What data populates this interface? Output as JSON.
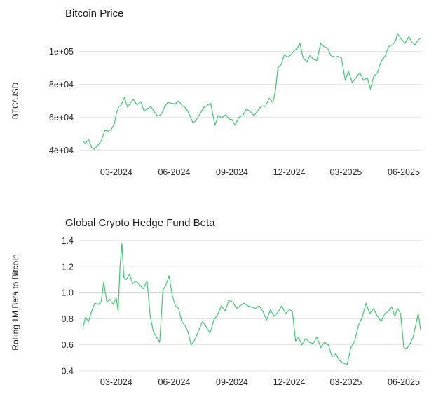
{
  "chart_data": [
    {
      "type": "line",
      "title": "Bitcoin Price",
      "xlabel": "",
      "ylabel": "BTC/USD",
      "ylim": [
        35000,
        116000
      ],
      "xlim": [
        "2024-01-01",
        "2025-06-30"
      ],
      "yticks": [
        40000,
        60000,
        80000,
        100000
      ],
      "ytick_labels": [
        "4e+04",
        "6e+04",
        "8e+04",
        "1e+05"
      ],
      "xticks": [
        "2024-03-01",
        "2024-06-01",
        "2024-09-01",
        "2024-12-01",
        "2025-03-01",
        "2025-06-01"
      ],
      "xtick_labels": [
        "03-2024",
        "06-2024",
        "09-2024",
        "12-2024",
        "03-2025",
        "06-2025"
      ],
      "grid": true,
      "color": "#3ec96f",
      "series": [
        {
          "x": [
            "2024-01-08",
            "2024-01-12",
            "2024-01-17",
            "2024-01-22",
            "2024-01-26",
            "2024-02-01",
            "2024-02-06",
            "2024-02-12",
            "2024-02-17",
            "2024-02-22",
            "2024-02-27",
            "2024-03-01",
            "2024-03-05",
            "2024-03-09",
            "2024-03-14",
            "2024-03-19",
            "2024-03-24",
            "2024-03-28",
            "2024-04-03",
            "2024-04-09",
            "2024-04-14",
            "2024-04-19",
            "2024-04-25",
            "2024-05-01",
            "2024-05-06",
            "2024-05-12",
            "2024-05-17",
            "2024-05-22",
            "2024-05-28",
            "2024-06-03",
            "2024-06-08",
            "2024-06-14",
            "2024-06-20",
            "2024-06-26",
            "2024-07-01",
            "2024-07-06",
            "2024-07-12",
            "2024-07-18",
            "2024-07-23",
            "2024-07-29",
            "2024-08-05",
            "2024-08-10",
            "2024-08-16",
            "2024-08-22",
            "2024-08-27",
            "2024-09-01",
            "2024-09-06",
            "2024-09-12",
            "2024-09-18",
            "2024-09-24",
            "2024-09-30",
            "2024-10-06",
            "2024-10-12",
            "2024-10-18",
            "2024-10-24",
            "2024-10-30",
            "2024-11-05",
            "2024-11-09",
            "2024-11-13",
            "2024-11-18",
            "2024-11-23",
            "2024-11-28",
            "2024-12-04",
            "2024-12-09",
            "2024-12-14",
            "2024-12-18",
            "2024-12-23",
            "2024-12-29",
            "2025-01-03",
            "2025-01-09",
            "2025-01-14",
            "2025-01-20",
            "2025-01-25",
            "2025-01-31",
            "2025-02-05",
            "2025-02-11",
            "2025-02-17",
            "2025-02-22",
            "2025-02-28",
            "2025-03-05",
            "2025-03-11",
            "2025-03-17",
            "2025-03-23",
            "2025-03-29",
            "2025-04-04",
            "2025-04-09",
            "2025-04-14",
            "2025-04-20",
            "2025-04-26",
            "2025-05-02",
            "2025-05-08",
            "2025-05-14",
            "2025-05-19",
            "2025-05-22",
            "2025-05-28",
            "2025-06-03",
            "2025-06-09",
            "2025-06-14",
            "2025-06-19",
            "2025-06-24",
            "2025-06-28"
          ],
          "values": [
            45500,
            44000,
            46500,
            41500,
            40500,
            43000,
            45500,
            52000,
            51500,
            52500,
            56000,
            62000,
            66500,
            67500,
            72000,
            66000,
            69000,
            71000,
            67500,
            69500,
            64000,
            65000,
            66500,
            63000,
            60500,
            62000,
            66500,
            69000,
            68500,
            68000,
            70000,
            67000,
            65500,
            61000,
            56500,
            58000,
            62000,
            66000,
            67000,
            68500,
            55000,
            61000,
            59500,
            61500,
            59000,
            58500,
            55000,
            60000,
            61000,
            65000,
            63500,
            61000,
            64000,
            67000,
            66500,
            71500,
            69000,
            76000,
            90000,
            92000,
            98000,
            96500,
            98000,
            100500,
            102000,
            105000,
            96000,
            93500,
            97500,
            95000,
            94500,
            105000,
            103000,
            102000,
            97500,
            96500,
            97000,
            96000,
            82500,
            88000,
            81000,
            84000,
            87000,
            82500,
            84000,
            77000,
            84500,
            87000,
            94000,
            97000,
            103000,
            104000,
            106500,
            111000,
            107500,
            105000,
            109000,
            105500,
            104000,
            107000,
            108000
          ]
        }
      ]
    },
    {
      "type": "line",
      "title": "Global Crypto Hedge Fund Beta",
      "xlabel": "",
      "ylabel": "Rolling 1M Beta to Bitcoin",
      "ylim": [
        0.4,
        1.42
      ],
      "xlim": [
        "2024-01-01",
        "2025-06-30"
      ],
      "yticks": [
        0.4,
        0.6,
        0.8,
        1.0,
        1.2,
        1.4
      ],
      "ytick_labels": [
        "0.4",
        "0.6",
        "0.8",
        "1.0",
        "1.2",
        "1.4"
      ],
      "xticks": [
        "2024-03-01",
        "2024-06-01",
        "2024-09-01",
        "2024-12-01",
        "2025-03-01",
        "2025-06-01"
      ],
      "xtick_labels": [
        "03-2024",
        "06-2024",
        "09-2024",
        "12-2024",
        "03-2025",
        "06-2025"
      ],
      "reference_line": 1.0,
      "grid": true,
      "color": "#3ec96f",
      "series": [
        {
          "x": [
            "2024-01-08",
            "2024-01-12",
            "2024-01-17",
            "2024-01-22",
            "2024-01-27",
            "2024-02-01",
            "2024-02-06",
            "2024-02-10",
            "2024-02-15",
            "2024-02-20",
            "2024-02-25",
            "2024-03-01",
            "2024-03-04",
            "2024-03-07",
            "2024-03-10",
            "2024-03-13",
            "2024-03-17",
            "2024-03-22",
            "2024-03-27",
            "2024-04-02",
            "2024-04-07",
            "2024-04-13",
            "2024-04-19",
            "2024-04-24",
            "2024-04-29",
            "2024-05-04",
            "2024-05-09",
            "2024-05-14",
            "2024-05-19",
            "2024-05-24",
            "2024-05-29",
            "2024-06-03",
            "2024-06-08",
            "2024-06-13",
            "2024-06-18",
            "2024-06-23",
            "2024-06-28",
            "2024-07-04",
            "2024-07-10",
            "2024-07-16",
            "2024-07-22",
            "2024-07-28",
            "2024-08-03",
            "2024-08-09",
            "2024-08-15",
            "2024-08-21",
            "2024-08-27",
            "2024-09-02",
            "2024-09-08",
            "2024-09-14",
            "2024-09-20",
            "2024-09-26",
            "2024-10-02",
            "2024-10-08",
            "2024-10-14",
            "2024-10-20",
            "2024-10-26",
            "2024-11-01",
            "2024-11-07",
            "2024-11-13",
            "2024-11-19",
            "2024-11-25",
            "2024-12-01",
            "2024-12-06",
            "2024-12-11",
            "2024-12-16",
            "2024-12-21",
            "2024-12-27",
            "2025-01-02",
            "2025-01-08",
            "2025-01-14",
            "2025-01-20",
            "2025-01-26",
            "2025-02-01",
            "2025-02-07",
            "2025-02-13",
            "2025-02-19",
            "2025-02-25",
            "2025-03-03",
            "2025-03-09",
            "2025-03-15",
            "2025-03-21",
            "2025-03-27",
            "2025-04-02",
            "2025-04-08",
            "2025-04-14",
            "2025-04-20",
            "2025-04-26",
            "2025-05-02",
            "2025-05-08",
            "2025-05-13",
            "2025-05-18",
            "2025-05-22",
            "2025-05-27",
            "2025-06-01",
            "2025-06-06",
            "2025-06-11",
            "2025-06-16",
            "2025-06-20",
            "2025-06-24",
            "2025-06-28"
          ],
          "values": [
            0.73,
            0.81,
            0.78,
            0.86,
            0.92,
            0.91,
            0.93,
            1.08,
            0.93,
            0.95,
            0.91,
            0.96,
            0.86,
            1.2,
            1.38,
            1.12,
            1.1,
            1.14,
            1.07,
            1.09,
            1.06,
            1.03,
            1.09,
            0.82,
            0.7,
            0.66,
            0.62,
            1.02,
            1.06,
            1.13,
            0.98,
            0.9,
            0.88,
            0.78,
            0.75,
            0.7,
            0.6,
            0.64,
            0.71,
            0.78,
            0.74,
            0.69,
            0.79,
            0.83,
            0.9,
            0.86,
            0.94,
            0.93,
            0.88,
            0.9,
            0.92,
            0.9,
            0.89,
            0.88,
            0.9,
            0.86,
            0.79,
            0.87,
            0.82,
            0.85,
            0.9,
            0.84,
            0.87,
            0.86,
            0.63,
            0.66,
            0.6,
            0.65,
            0.62,
            0.61,
            0.66,
            0.58,
            0.62,
            0.6,
            0.51,
            0.53,
            0.48,
            0.46,
            0.45,
            0.58,
            0.63,
            0.75,
            0.81,
            0.92,
            0.84,
            0.88,
            0.82,
            0.78,
            0.84,
            0.86,
            0.89,
            0.82,
            0.88,
            0.84,
            0.58,
            0.57,
            0.61,
            0.66,
            0.75,
            0.84,
            0.71
          ]
        }
      ]
    }
  ]
}
